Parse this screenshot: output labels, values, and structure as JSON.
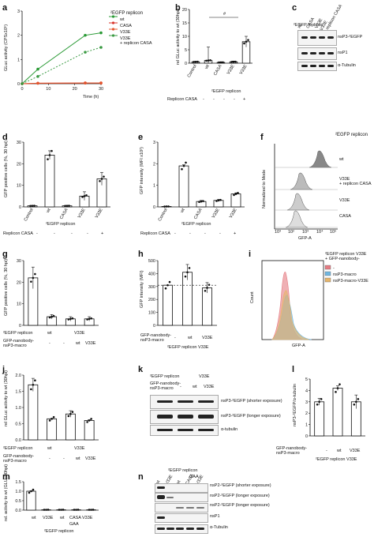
{
  "panels": {
    "a": "a",
    "b": "b",
    "c": "c",
    "d": "d",
    "e": "e",
    "f": "f",
    "g": "g",
    "h": "h",
    "i": "i",
    "j": "j",
    "k": "k",
    "l": "l",
    "m": "m",
    "n": "n"
  },
  "common": {
    "replicon": "²EGFP replicon",
    "replicon_casa": "Replicon CASA",
    "v33e_replicon": "²EGFP replicon V33E",
    "gfp_nb_macro": "GFP-nanobody-\nnsP3-macro",
    "control": "Control",
    "wt": "wt",
    "casa": "CASA",
    "v33e": "V33E",
    "minus": "-",
    "plus": "+",
    "gaa": "GAA",
    "alpha_tubulin": "α-Tubulin",
    "alpha_tubulin_lc": "α-tubulin"
  },
  "panel_a": {
    "ylabel": "GLuc activity (CPSx10⁶)",
    "xlabel": "Time (h)",
    "legend_title": "²EGFP replicon",
    "legend": [
      "wt",
      "CASA",
      "V33E",
      "V33E\n+ replicon CASA"
    ],
    "colors": [
      "#2a9a35",
      "#d9342b",
      "#e4552d",
      "#3a9a43"
    ],
    "xticks": [
      "0",
      "10",
      "20",
      "30"
    ],
    "yticks": [
      "0",
      "1",
      "2",
      "3"
    ]
  },
  "panel_b": {
    "ylabel": "rel GLuc activity to wt (30hpi)",
    "yticks": [
      "0",
      "5",
      "10",
      "15",
      "20"
    ],
    "hash": "#"
  },
  "panel_c": {
    "col_labels": [
      "wt",
      "CASA",
      "V33E",
      "V33E\n+ replicon CASA"
    ],
    "rows": [
      "nsP3-²EGFP",
      "nsP1",
      "α-Tubulin"
    ]
  },
  "panel_d": {
    "ylabel": "GFP positive cells (%, 30 hpi)",
    "yticks": [
      "0",
      "10",
      "20",
      "30"
    ]
  },
  "panel_e": {
    "ylabel": "GFP intensity (MFI x10²)",
    "yticks": [
      "0",
      "1",
      "2",
      "3"
    ]
  },
  "panel_f": {
    "ylabel": "Normalized to Mode",
    "xlabel": "GFP-A",
    "rows": [
      "wt",
      "V33E\n+ replicon CASA",
      "V33E",
      "CASA"
    ],
    "xticks": [
      "10³",
      "10²",
      "10³",
      "10⁴",
      "10⁵"
    ]
  },
  "panel_g": {
    "ylabel": "GFP positive cells (%, 30 hpi)",
    "yticks": [
      "0",
      "10",
      "20",
      "30"
    ]
  },
  "panel_h": {
    "ylabel": "GFP intensity (MFI)",
    "yticks": [
      "0",
      "100",
      "200",
      "300",
      "400",
      "500"
    ]
  },
  "panel_i": {
    "ylabel": "Count",
    "xlabel": "GFP-A",
    "legend_title": "²EGFP replicon V33E\n+ GFP-nanobody-",
    "legend": [
      "-",
      "nsP3-macro",
      "nsP3-macro-V33E"
    ],
    "colors": [
      "#e57b82",
      "#6fb6e0",
      "#e6b56a"
    ]
  },
  "panel_j": {
    "ylabel": "rel GLuc activity to wt (30hpi)",
    "yticks": [
      "0.0",
      "0.5",
      "1.0",
      "1.5",
      "2.0"
    ]
  },
  "panel_k": {
    "header": "²EGFP replicon",
    "v33e": "V33E",
    "rows": [
      "nsP3-²EGFP (shorter exposure)",
      "nsP3-²EGFP (longer exposure)",
      "α-tubulin"
    ]
  },
  "panel_l": {
    "ylabel": "nsP3-²EGFP/α-tubulin",
    "yticks": [
      "0",
      "1",
      "2",
      "3",
      "4",
      "5"
    ]
  },
  "panel_m": {
    "ylabel": "rel. activity to wt (GLU, 30hpi)",
    "yticks": [
      "0.0",
      "0.5",
      "1.0",
      "1.5"
    ]
  },
  "panel_n": {
    "header": "²EGFP replicon",
    "gaa": "GAA",
    "cols": [
      "wt",
      "V33E",
      "wt",
      "CASA",
      "V33E"
    ],
    "rows": [
      "nsP2-²EGFP (shorter exposure)",
      "nsP2-²EGFP (longer exposure)",
      "nsP2-²EGFP (longer exposure)",
      "nsP1",
      "α-Tubulin"
    ]
  },
  "chart_data": [
    {
      "panel": "a",
      "type": "line",
      "x": [
        0,
        6,
        24,
        30
      ],
      "series": [
        {
          "name": "wt",
          "values": [
            0,
            0.6,
            2.0,
            2.1
          ]
        },
        {
          "name": "CASA",
          "values": [
            0,
            0.02,
            0.03,
            0.03
          ]
        },
        {
          "name": "V33E",
          "values": [
            0,
            0.02,
            0.03,
            0.03
          ]
        },
        {
          "name": "V33E + replicon CASA",
          "values": [
            0,
            0.3,
            1.3,
            1.5
          ]
        }
      ],
      "xlabel": "Time (h)",
      "ylabel": "GLuc activity (CPSx10⁶)",
      "ylim": [
        0,
        3
      ]
    },
    {
      "panel": "b",
      "type": "bar",
      "categories": [
        "Control",
        "wt",
        "CASA",
        "V33E",
        "V33E"
      ],
      "values": [
        0.5,
        1,
        0.3,
        0.5,
        8
      ],
      "ylim": [
        0,
        20
      ]
    },
    {
      "panel": "d",
      "type": "bar",
      "categories": [
        "Control",
        "wt",
        "CASA",
        "V33E",
        "V33E"
      ],
      "values": [
        0.5,
        24,
        0.5,
        5,
        13
      ],
      "ylim": [
        0,
        30
      ]
    },
    {
      "panel": "e",
      "type": "bar",
      "categories": [
        "Control",
        "wt",
        "CASA",
        "V33E",
        "V33E"
      ],
      "values": [
        0.02,
        1.9,
        0.25,
        0.3,
        0.6
      ],
      "ylim": [
        0,
        3
      ]
    },
    {
      "panel": "g",
      "type": "bar",
      "categories": [
        "wt",
        "-",
        "wt",
        "V33E"
      ],
      "values": [
        22,
        4,
        3,
        3
      ],
      "ylim": [
        0,
        30
      ]
    },
    {
      "panel": "h",
      "type": "bar",
      "categories": [
        "-",
        "wt",
        "V33E"
      ],
      "values": [
        310,
        410,
        290
      ],
      "ylim": [
        0,
        500
      ]
    },
    {
      "panel": "j",
      "type": "bar",
      "categories": [
        "wt",
        "-",
        "wt",
        "V33E"
      ],
      "values": [
        1.7,
        0.65,
        0.8,
        0.6
      ],
      "ylim": [
        0,
        2
      ]
    },
    {
      "panel": "l",
      "type": "bar",
      "categories": [
        "-",
        "wt",
        "V33E"
      ],
      "values": [
        3.0,
        4.2,
        3.0
      ],
      "ylim": [
        0,
        5
      ]
    },
    {
      "panel": "m",
      "type": "bar",
      "categories": [
        "wt",
        "V33E",
        "wt",
        "CASA",
        "V33E"
      ],
      "values": [
        1.0,
        0.02,
        0.02,
        0.02,
        0.02
      ],
      "ylim": [
        0,
        1.5
      ]
    }
  ]
}
